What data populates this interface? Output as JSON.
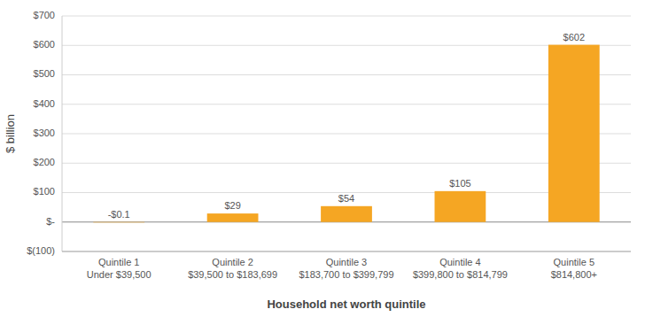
{
  "chart_data": {
    "type": "bar",
    "categories": [
      "Quintile 1\nUnder $39,500",
      "Quintile 2\n$39,500 to $183,699",
      "Quintile 3\n$183,700 to $399,799",
      "Quintile 4\n$399,800 to $814,799",
      "Quintile 5\n$814,800+"
    ],
    "values": [
      -0.1,
      29,
      54,
      105,
      602
    ],
    "value_labels": [
      "-$0.1",
      "$29",
      "$54",
      "$105",
      "$602"
    ],
    "data_labels": true,
    "color": "#F5A623",
    "xlabel": "Household net worth quintile",
    "ylabel": "$ billion",
    "ylim": [
      -100,
      700
    ],
    "yticks": [
      {
        "value": -100,
        "label": "$(100)"
      },
      {
        "value": 0,
        "label": "$-"
      },
      {
        "value": 100,
        "label": "$100"
      },
      {
        "value": 200,
        "label": "$200"
      },
      {
        "value": 300,
        "label": "$300"
      },
      {
        "value": 400,
        "label": "$400"
      },
      {
        "value": 500,
        "label": "$500"
      },
      {
        "value": 600,
        "label": "$600"
      },
      {
        "value": 700,
        "label": "$700"
      }
    ],
    "grid": true
  }
}
